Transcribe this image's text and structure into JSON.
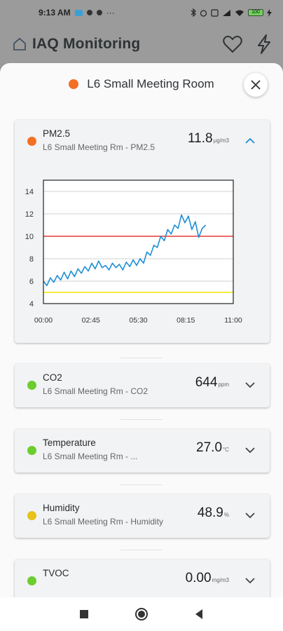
{
  "status_bar": {
    "time": "9:13 AM",
    "dots": "···",
    "battery": "100"
  },
  "app_bar": {
    "title": "IAQ Monitoring"
  },
  "sheet": {
    "room_title": "L6 Small Meeting Room",
    "room_status_color": "#f36f24"
  },
  "metrics": [
    {
      "name": "PM2.5",
      "subtitle": "L6 Small Meeting Rm - PM2.5",
      "value": "11.8",
      "unit": "μg/m3",
      "status_color": "#f36f24",
      "expanded": true
    },
    {
      "name": "CO2",
      "subtitle": "L6 Small Meeting Rm - CO2",
      "value": "644",
      "unit": "ppm",
      "status_color": "#6ccd2f",
      "expanded": false
    },
    {
      "name": "Temperature",
      "subtitle": "L6 Small Meeting Rm - ...",
      "value": "27.0",
      "unit": "°C",
      "status_color": "#6ccd2f",
      "expanded": false
    },
    {
      "name": "Humidity",
      "subtitle": "L6 Small Meeting Rm - Humidity",
      "value": "48.9",
      "unit": "%",
      "status_color": "#e6c21a",
      "expanded": false
    },
    {
      "name": "TVOC",
      "subtitle": "",
      "value": "0.00",
      "unit": "mg/m3",
      "status_color": "#6ccd2f",
      "expanded": false
    }
  ],
  "chart_data": {
    "type": "line",
    "x_ticks": [
      "00:00",
      "02:45",
      "05:30",
      "08:15",
      "11:00"
    ],
    "y_ticks": [
      "4",
      "6",
      "8",
      "10",
      "12",
      "14"
    ],
    "xlim_hours": [
      0,
      11
    ],
    "ylim": [
      4,
      15
    ],
    "grid": true,
    "thresholds": [
      {
        "value": 10,
        "color": "#e53935"
      },
      {
        "value": 5,
        "color": "#f2e600"
      }
    ],
    "series": [
      {
        "color": "#1e8fd6",
        "x_hours": [
          0,
          0.2,
          0.4,
          0.6,
          0.8,
          1.0,
          1.2,
          1.4,
          1.6,
          1.8,
          2.0,
          2.2,
          2.4,
          2.6,
          2.8,
          3.0,
          3.2,
          3.4,
          3.6,
          3.8,
          4.0,
          4.2,
          4.4,
          4.6,
          4.8,
          5.0,
          5.2,
          5.4,
          5.6,
          5.8,
          6.0,
          6.2,
          6.4,
          6.6,
          6.8,
          7.0,
          7.2,
          7.4,
          7.6,
          7.8,
          8.0,
          8.2,
          8.4,
          8.6,
          8.8,
          9.0,
          9.2,
          9.4
        ],
        "values": [
          6.0,
          5.6,
          6.3,
          5.9,
          6.5,
          6.1,
          6.8,
          6.2,
          6.9,
          6.4,
          7.1,
          6.7,
          7.3,
          6.9,
          7.6,
          7.1,
          7.8,
          7.2,
          7.4,
          7.0,
          7.6,
          7.2,
          7.5,
          7.0,
          7.7,
          7.3,
          7.9,
          7.4,
          8.0,
          7.6,
          8.6,
          8.3,
          9.2,
          9.0,
          10.0,
          9.6,
          10.6,
          10.2,
          11.0,
          10.7,
          11.9,
          11.2,
          11.8,
          10.6,
          11.3,
          9.9,
          10.7,
          11.0
        ]
      }
    ]
  }
}
